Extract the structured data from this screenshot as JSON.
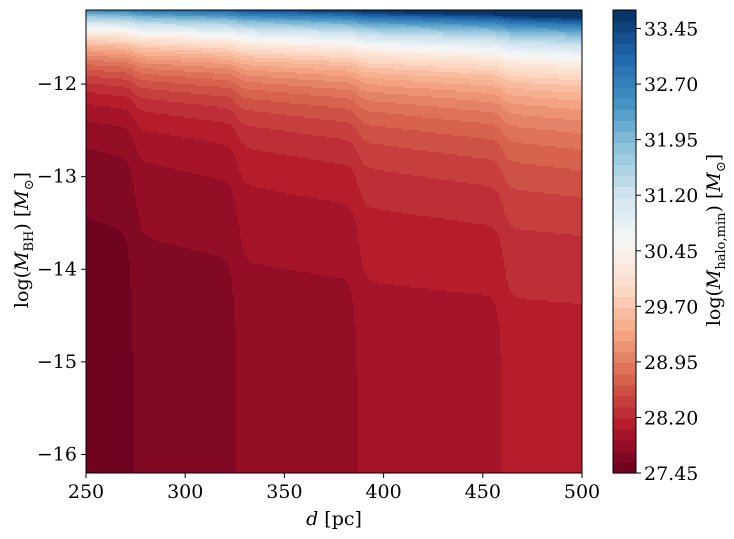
{
  "chart_data": {
    "type": "heatmap",
    "subtype": "filled-contour",
    "colormap": "RdBu",
    "xlabel": "d [pc]",
    "ylabel": "log(M_BH) [M_⊙]",
    "colorbar_label": "log(M_halo,min) [M_⊙]",
    "xlim": [
      250,
      500
    ],
    "ylim": [
      -16.2,
      -11.2
    ],
    "x_ticks": [
      250,
      300,
      350,
      400,
      450,
      500
    ],
    "x_tick_labels": [
      "250",
      "300",
      "350",
      "400",
      "450",
      "500"
    ],
    "y_ticks": [
      -12,
      -13,
      -14,
      -15,
      -16
    ],
    "y_tick_labels": [
      "−12",
      "−13",
      "−14",
      "−15",
      "−16"
    ],
    "colorbar_range": [
      27.45,
      33.7
    ],
    "colorbar_ticks": [
      27.45,
      28.2,
      28.95,
      29.7,
      30.45,
      31.2,
      31.95,
      32.7,
      33.45
    ],
    "colorbar_tick_labels": [
      "27.45",
      "28.20",
      "28.95",
      "29.70",
      "30.45",
      "31.20",
      "31.95",
      "32.70",
      "33.45"
    ],
    "contour_step": 0.15,
    "vertical_boundaries_low_mass": [
      {
        "x": 274,
        "level_left": 27.45,
        "level_right": 27.6
      },
      {
        "x": 326,
        "level_left": 27.6,
        "level_right": 27.75
      },
      {
        "x": 387,
        "level_left": 27.75,
        "level_right": 27.9
      },
      {
        "x": 460,
        "level_left": 27.9,
        "level_right": 28.05
      }
    ],
    "high_mass_edge": {
      "log_m_bh": -11.2,
      "value": 33.7
    }
  },
  "colors": {
    "rdbu": [
      "#67001f",
      "#b2182b",
      "#d6604d",
      "#f4a582",
      "#fddbc7",
      "#f7f7f7",
      "#d1e5f0",
      "#92c5de",
      "#4393c3",
      "#2166ac",
      "#053061"
    ]
  }
}
